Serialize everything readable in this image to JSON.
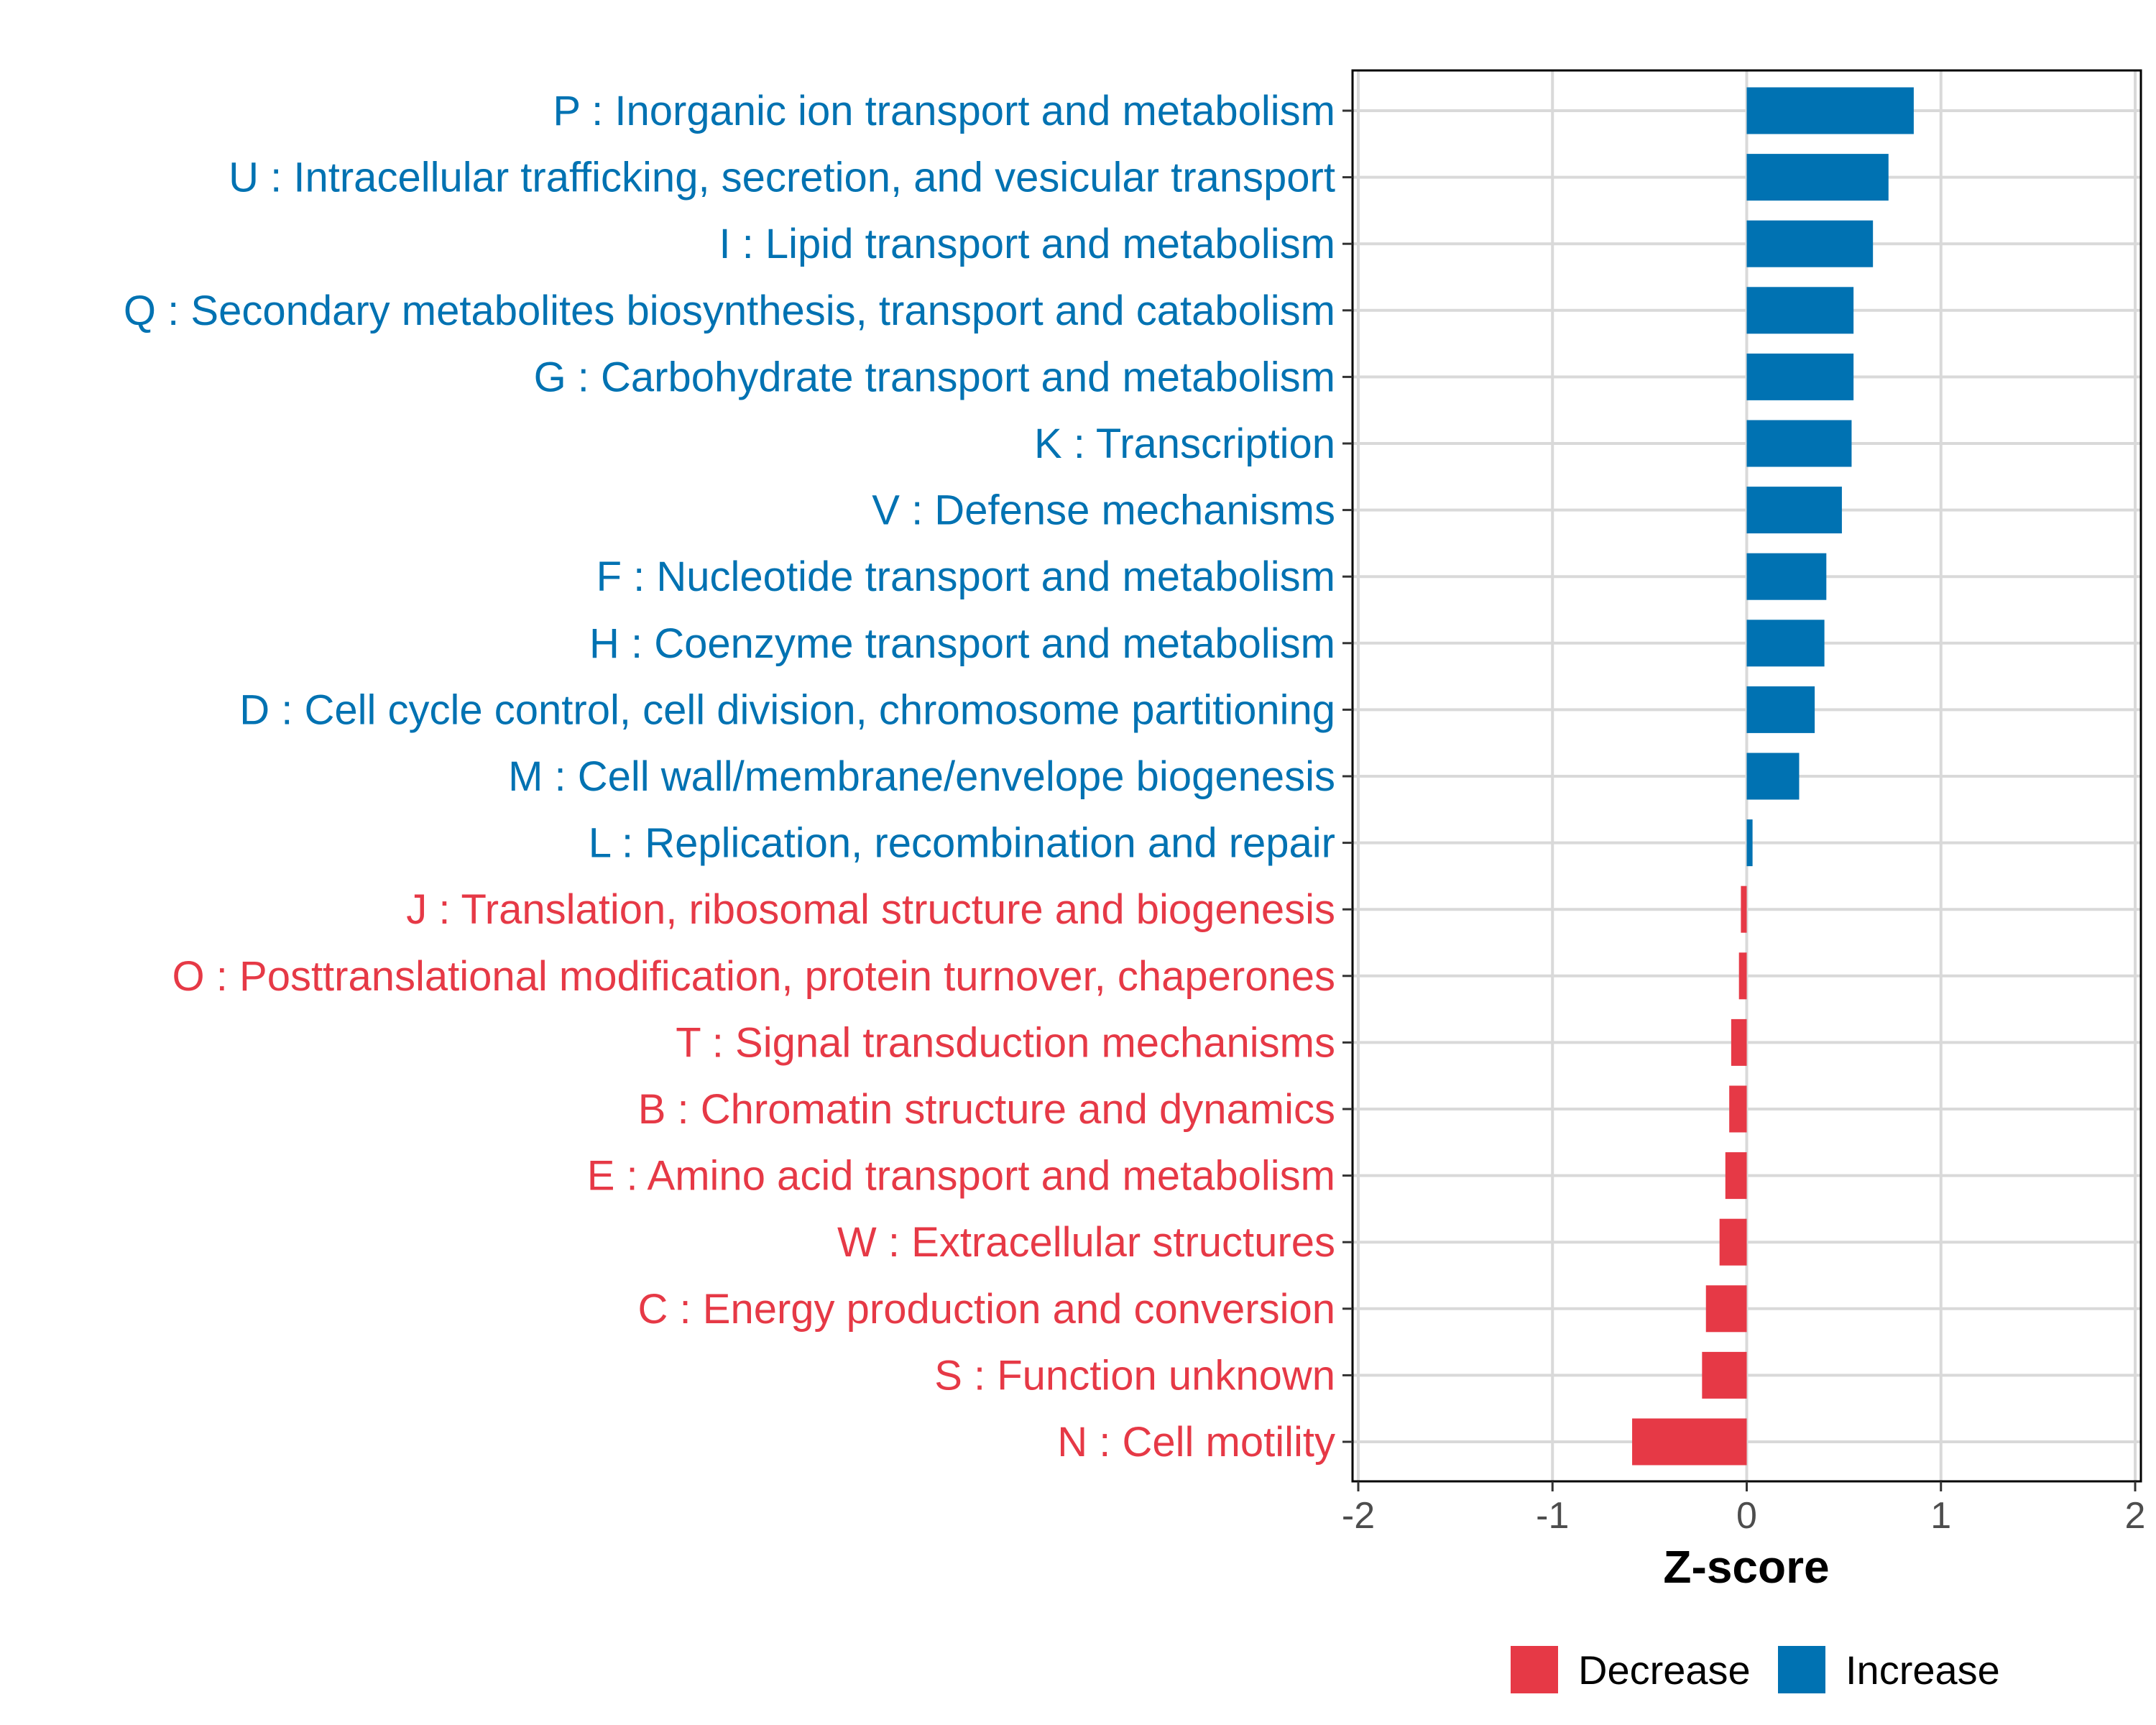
{
  "chart_data": {
    "type": "bar",
    "orientation": "horizontal",
    "xlabel": "Z-score",
    "ylabel": "",
    "xlim": [
      -2,
      2
    ],
    "xticks": [
      -2,
      -1,
      0,
      1,
      2
    ],
    "xtick_labels": [
      "-2",
      "-1",
      "0",
      "1",
      "2"
    ],
    "grid": true,
    "legend_position": "bottom",
    "categories": [
      "P : Inorganic ion transport and metabolism",
      "U : Intracellular trafficking, secretion, and vesicular transport",
      "I : Lipid transport and metabolism",
      "Q : Secondary metabolites biosynthesis, transport and catabolism",
      "G : Carbohydrate transport and metabolism",
      "K : Transcription",
      "V : Defense mechanisms",
      "F : Nucleotide transport and metabolism",
      "H : Coenzyme transport and metabolism",
      "D : Cell cycle control, cell division, chromosome partitioning",
      "M : Cell wall/membrane/envelope biogenesis",
      "L : Replication, recombination and repair",
      "J : Translation, ribosomal structure and biogenesis",
      "O : Posttranslational modification, protein turnover, chaperones",
      "T : Signal transduction mechanisms",
      "B : Chromatin structure and dynamics",
      "E : Amino acid transport and metabolism",
      "W : Extracellular structures",
      "C : Energy production and conversion",
      "S : Function unknown",
      "N : Cell motility"
    ],
    "values": [
      0.86,
      0.73,
      0.65,
      0.55,
      0.55,
      0.54,
      0.49,
      0.41,
      0.4,
      0.35,
      0.27,
      0.03,
      -0.03,
      -0.04,
      -0.08,
      -0.09,
      -0.11,
      -0.14,
      -0.21,
      -0.23,
      -0.59
    ],
    "groups": [
      "Increase",
      "Increase",
      "Increase",
      "Increase",
      "Increase",
      "Increase",
      "Increase",
      "Increase",
      "Increase",
      "Increase",
      "Increase",
      "Increase",
      "Decrease",
      "Decrease",
      "Decrease",
      "Decrease",
      "Decrease",
      "Decrease",
      "Decrease",
      "Decrease",
      "Decrease"
    ],
    "legend": [
      {
        "label": "Decrease",
        "color": "#E63946"
      },
      {
        "label": "Increase",
        "color": "#0072B2"
      }
    ]
  }
}
